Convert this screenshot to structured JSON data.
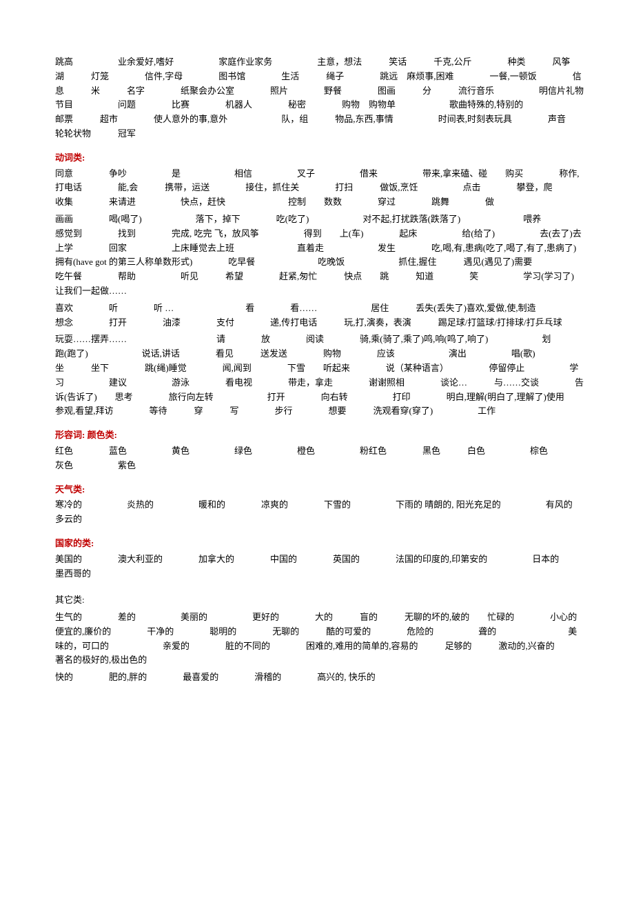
{
  "block1": {
    "lines": [
      "跳高　　　　　业余爱好,嗜好　　　　　家庭作业家务　　　　　主意，想法　　　笑话　　　千克,公斤　　　　种类　　　风筝　　　湖　　　灯笼　　　　信件,字母　　　　图书馆　　　　生活　　　绳子　　　　跳远　麻烦事,困难　　　　一餐,一顿饭　　　　信息　　　米　　　名字　　　　纸聚会办公室　　　　照片　　　　野餐　　　　图画　　　分　　　流行音乐　　　　　明信片礼物节目　　　　　问题　　　　比赛　　　　机器人　　　　秘密　　　　购物　购物单　　　　　　歌曲特殊的,特别的　　　　　　邮票　　　超市　　　　使人意外的事,意外　　　　　　队，组　　　物品,东西,事情　　　　　时间表,时刻表玩具　　　　声音　　　　轮轮状物　　　冠军"
    ]
  },
  "verbs": {
    "heading": "动词类:",
    "lines": [
      "同意　　　　争吵　　　　　是　　　　　　相信　　　　　叉子　　　　　借来　　　　　带来,拿来磕、碰　　购买　　　　称作,打电话　　　　能,会　　　携带，运送　　　　接住，抓住关　　　　打扫　　　做饭,烹饪　　　　　点击　　　　攀登，爬　　　　收集　　　　来请进　　　　　快点，赶快　　　　　　　控制　　数数　　　　穿过　　　　跳舞　　　　做",
      "画画　　　　喝(喝了)　　　　　　落下，掉下　　　　吃(吃了)　　　　　　对不起,打扰跌落(跌落了)　　　　　　　喂养　　　　感觉到　　　　找到　　　　完成, 吃完 飞，放风筝　　　　　得到　　上(车)　　　　起床　　　　　给(给了)　　　　　去(去了)去上学　　　　回家　　　　　上床睡觉去上班　　　　　　　直着走　　　　　　发生　　　　吃,喝,有,患病(吃了,喝了,有了,患病了)　　拥有(have got 的第三人称单数形式)　　　　吃早餐　　　　　　　吃晚饭　　　　　　抓住,握住　　　遇见(遇见了)需要　　　　　　吃午餐　　　　帮助　　　　　听见　　　希望　　　　赶紧,匆忙　　　快点　　跳　　　知道　　　　笑　　　　　学习(学习了)　　　　　让我们一起做……",
      "喜欢　　　　听　　　　听 …　　　　　　　　看　　　　看……　　　　　　居住　　　丢失(丢失了)喜欢,爱做,使,制造　　　　　想念　　　　打开　　　　油漆　　　　支付　　　　递,传打电话　　　玩,打,演奏，表演　　　踢足球/打篮球/打排球/打乒乓球",
      "玩耍……摆弄……　　　　　　　　　　请　　　　放　　　　阅读　　　　骑,乘(骑了,乘了)鸣,响(鸣了,响了)　　　　　　划　　　　跑(跑了)　　　　　　说话,讲话　　　　看见　　　送发送　　　　购物　　　　应该　　　　　　演出　　　　　唱(歌)　　　　　　坐　　　坐下　　　　跳(绳)睡觉　　　　闻,闻到　　　　下雪　　听起来　　　　说（某种语言）　　　　　停留停止　　　　　学习　　　　　建议　　　　　游泳　　　　看电视　　　　带走，拿走　　　　谢谢照相　　　　谈论…　　　与……交谈　　　　告诉(告诉了)　　思考　　　　旅行向左转　　　　　　打开　　　　向右转　　　　　打印　　　　明白,理解(明白了,理解了)使用　　　　参观,看望,拜访　　　　等待　　　穿　　　写　　　　步行　　　　想要　　　洗观看穿(穿了)　　　　　工作"
    ]
  },
  "adjectives": {
    "heading": "形容词:   颜色类:",
    "lines": [
      "红色　　　　蓝色　　　　　黄色　　　　　绿色　　　　　橙色　　　　　粉红色　　　　黑色　　　白色　　　　　棕色　　　　灰色　　　　　紫色"
    ]
  },
  "weather": {
    "heading": "天气类:",
    "lines": [
      "寒冷的　　　　　炎热的　　　　　暖和的　　　　凉爽的　　　　下雪的　　　　　下雨的 晴朗的, 阳光充足的　　　　　有风的　　　　　多云的"
    ]
  },
  "countries": {
    "heading": "国家的类:",
    "lines": [
      "美国的　　　　澳大利亚的　　　　加拿大的　　　　中国的　　　　英国的　　　　法国的印度的,印第安的　　　　　日本的　　　　墨西哥的"
    ]
  },
  "other": {
    "heading": "其它类:",
    "lines": [
      "生气的　　　　差的　　　　　美丽的　　　　　更好的　　　　大的　　　盲的　　　无聊的坏的,破的　　忙碌的　　　　小心的　　　　　便宜的,廉价的　　　　干净的　　　　聪明的　　　　无聊的　　　酷的可爱的　　　　危险的　　　　　聋的　　　　　　　　美味的，可口的　　　　　　亲爱的　　　　脏的不同的　　　　困难的,难用的简单的,容易的　　　足够的　　　激动的,兴奋的　　　　　著名的极好的,极出色的",
      "快的　　　　肥的,胖的　　　　最喜爱的　　　　滑稽的　　　　高兴的, 快乐的"
    ]
  }
}
